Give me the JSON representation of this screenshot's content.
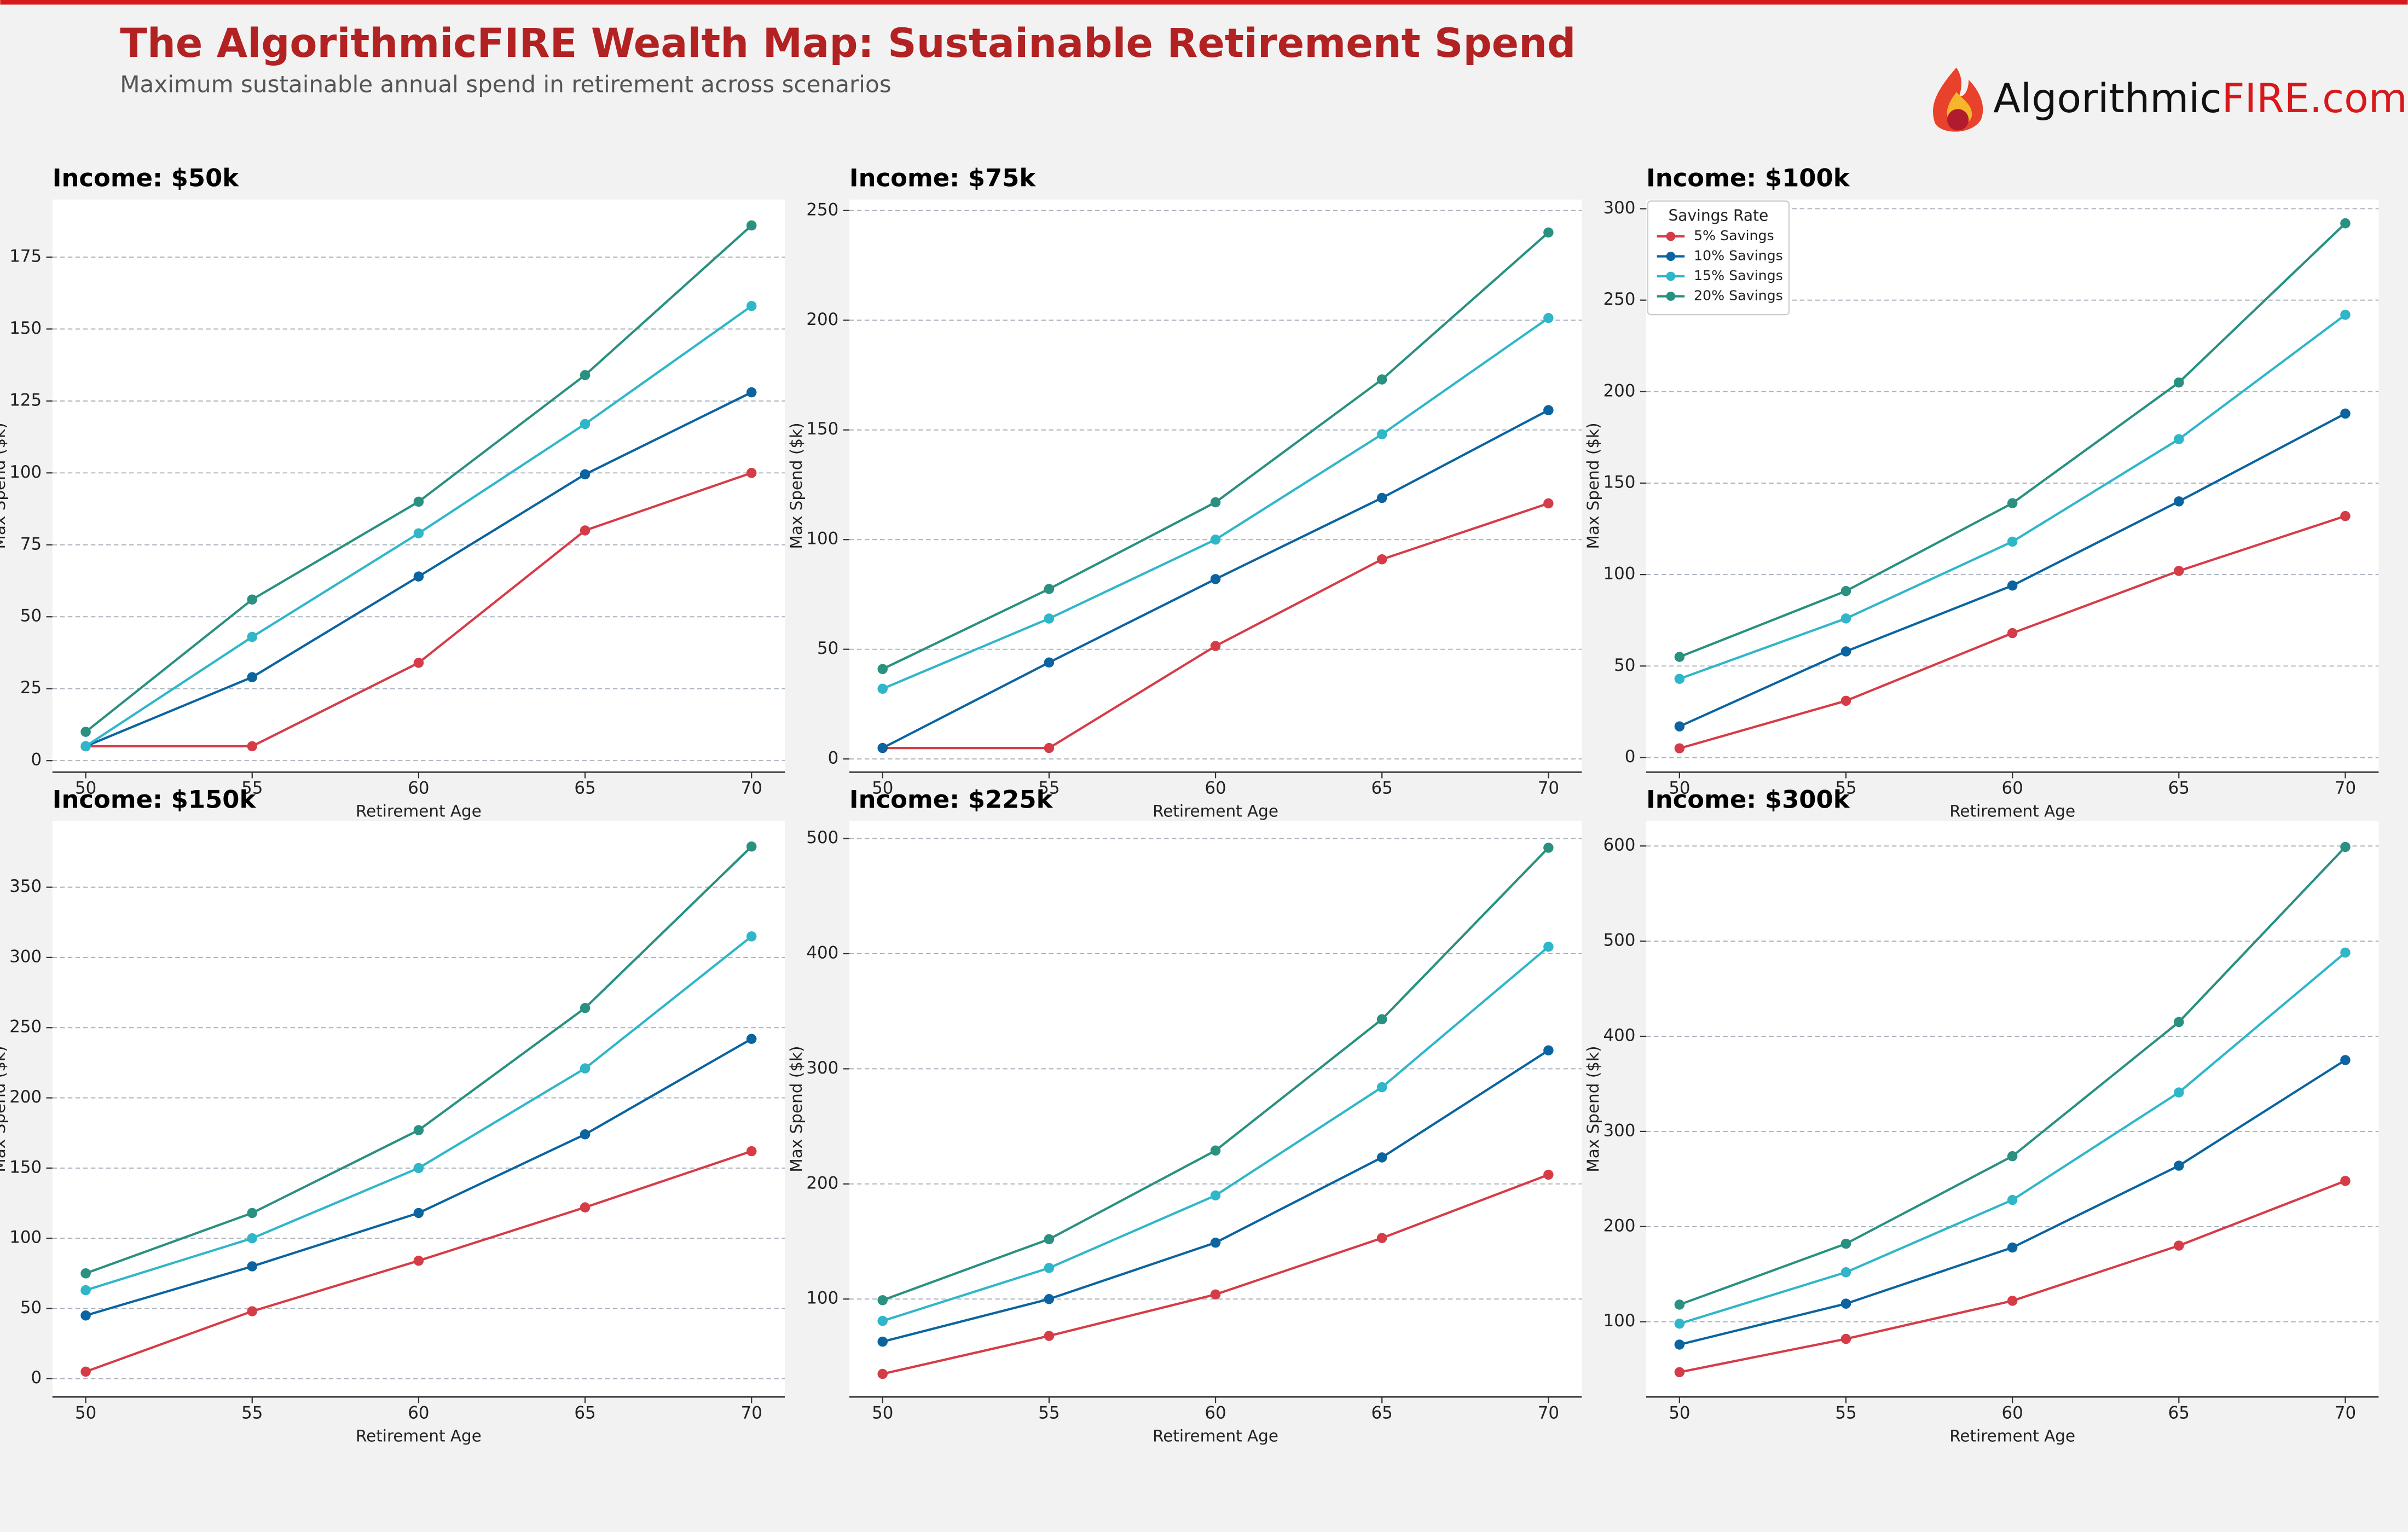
{
  "header": {
    "title": "The AlgorithmicFIRE Wealth Map: Sustainable Retirement Spend",
    "subtitle": "Maximum sustainable annual spend in retirement across scenarios",
    "logo_main": "Algorithmic",
    "logo_accent": "FIRE.com"
  },
  "chart_data": [
    {
      "type": "line",
      "title": "Income: $50k",
      "xlabel": "Retirement Age",
      "ylabel": "Max Spend ($k)",
      "x": [
        50,
        55,
        60,
        65,
        70
      ],
      "xlim": [
        49,
        71
      ],
      "xticks": [
        50,
        55,
        60,
        65,
        70
      ],
      "ylim": [
        -4,
        195
      ],
      "yticks": [
        0,
        25,
        50,
        75,
        100,
        125,
        150,
        175
      ],
      "grid": true,
      "series": [
        {
          "color": "#d63c47",
          "values": [
            5,
            5,
            34,
            80,
            100
          ]
        },
        {
          "color": "#0b64a0",
          "values": [
            5,
            29,
            64,
            99.5,
            128
          ]
        },
        {
          "color": "#2fb6c9",
          "values": [
            5,
            43,
            79,
            117,
            158
          ]
        },
        {
          "color": "#2a9080",
          "values": [
            10,
            56,
            90,
            134,
            186
          ]
        }
      ]
    },
    {
      "type": "line",
      "title": "Income: $75k",
      "xlabel": "Retirement Age",
      "ylabel": "Max Spend ($k)",
      "x": [
        50,
        55,
        60,
        65,
        70
      ],
      "xlim": [
        49,
        71
      ],
      "xticks": [
        50,
        55,
        60,
        65,
        70
      ],
      "ylim": [
        -6,
        255
      ],
      "yticks": [
        0,
        50,
        100,
        150,
        200,
        250
      ],
      "grid": true,
      "series": [
        {
          "color": "#d63c47",
          "values": [
            5,
            5,
            51.5,
            91,
            116.5
          ]
        },
        {
          "color": "#0b64a0",
          "values": [
            5,
            44,
            82,
            119,
            159
          ]
        },
        {
          "color": "#2fb6c9",
          "values": [
            32,
            64,
            100,
            148,
            201
          ]
        },
        {
          "color": "#2a9080",
          "values": [
            41,
            77.5,
            117,
            173,
            240
          ]
        }
      ]
    },
    {
      "type": "line",
      "title": "Income: $100k",
      "xlabel": "Retirement Age",
      "ylabel": "Max Spend ($k)",
      "x": [
        50,
        55,
        60,
        65,
        70
      ],
      "xlim": [
        49,
        71
      ],
      "xticks": [
        50,
        55,
        60,
        65,
        70
      ],
      "ylim": [
        -8,
        305
      ],
      "yticks": [
        0,
        50,
        100,
        150,
        200,
        250,
        300
      ],
      "grid": true,
      "legend": "upper left",
      "legend_title": "Savings Rate",
      "series": [
        {
          "name": "5% Savings",
          "color": "#d63c47",
          "values": [
            5,
            31,
            68,
            102,
            132
          ]
        },
        {
          "name": "10% Savings",
          "color": "#0b64a0",
          "values": [
            17,
            58,
            94,
            140,
            188
          ]
        },
        {
          "name": "15% Savings",
          "color": "#2fb6c9",
          "values": [
            43,
            76,
            118,
            174,
            242
          ]
        },
        {
          "name": "20% Savings",
          "color": "#2a9080",
          "values": [
            55,
            91,
            139,
            205,
            292
          ]
        }
      ]
    },
    {
      "type": "line",
      "title": "Income: $150k",
      "xlabel": "Retirement Age",
      "ylabel": "Max Spend ($k)",
      "x": [
        50,
        55,
        60,
        65,
        70
      ],
      "xlim": [
        49,
        71
      ],
      "xticks": [
        50,
        55,
        60,
        65,
        70
      ],
      "ylim": [
        -13,
        397
      ],
      "yticks": [
        0,
        50,
        100,
        150,
        200,
        250,
        300,
        350
      ],
      "grid": true,
      "series": [
        {
          "color": "#d63c47",
          "values": [
            5,
            48,
            84,
            122,
            162
          ]
        },
        {
          "color": "#0b64a0",
          "values": [
            45,
            80,
            118,
            174,
            242
          ]
        },
        {
          "color": "#2fb6c9",
          "values": [
            63,
            100,
            150,
            221,
            315
          ]
        },
        {
          "color": "#2a9080",
          "values": [
            75,
            118,
            177,
            264,
            379
          ]
        }
      ]
    },
    {
      "type": "line",
      "title": "Income: $225k",
      "xlabel": "Retirement Age",
      "ylabel": "Max Spend ($k)",
      "x": [
        50,
        55,
        60,
        65,
        70
      ],
      "xlim": [
        49,
        71
      ],
      "xticks": [
        50,
        55,
        60,
        65,
        70
      ],
      "ylim": [
        15,
        515
      ],
      "yticks": [
        100,
        200,
        300,
        400,
        500
      ],
      "grid": true,
      "series": [
        {
          "color": "#d63c47",
          "values": [
            35,
            68,
            104,
            153,
            208
          ]
        },
        {
          "color": "#0b64a0",
          "values": [
            63,
            100,
            149,
            223,
            316
          ]
        },
        {
          "color": "#2fb6c9",
          "values": [
            81,
            127,
            190,
            284,
            406
          ]
        },
        {
          "color": "#2a9080",
          "values": [
            99,
            152,
            229,
            343,
            492
          ]
        }
      ]
    },
    {
      "type": "line",
      "title": "Income: $300k",
      "xlabel": "Retirement Age",
      "ylabel": "Max Spend ($k)",
      "x": [
        50,
        55,
        60,
        65,
        70
      ],
      "xlim": [
        49,
        71
      ],
      "xticks": [
        50,
        55,
        60,
        65,
        70
      ],
      "ylim": [
        21,
        626
      ],
      "yticks": [
        100,
        200,
        300,
        400,
        500,
        600
      ],
      "grid": true,
      "series": [
        {
          "color": "#d63c47",
          "values": [
            47,
            82,
            122,
            180,
            248
          ]
        },
        {
          "color": "#0b64a0",
          "values": [
            76,
            119,
            178,
            264,
            375
          ]
        },
        {
          "color": "#2fb6c9",
          "values": [
            98,
            152,
            228,
            341,
            488
          ]
        },
        {
          "color": "#2a9080",
          "values": [
            118,
            182,
            274,
            415,
            599
          ]
        }
      ]
    }
  ]
}
